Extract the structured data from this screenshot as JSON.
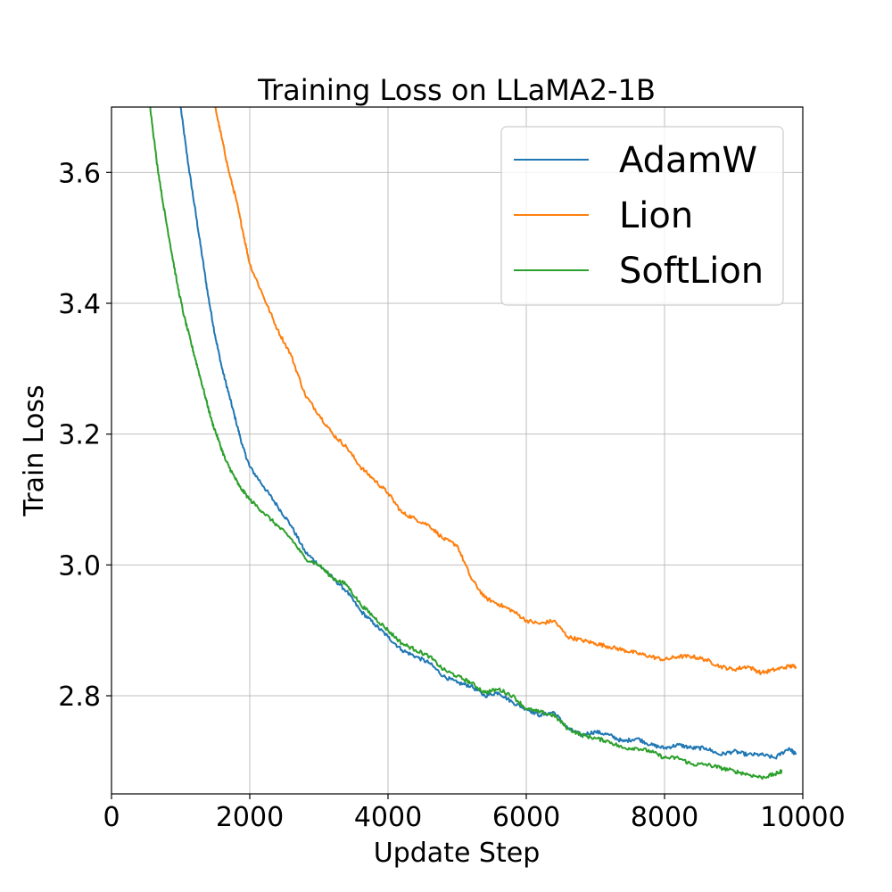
{
  "chart_data": {
    "type": "line",
    "title": "Training Loss on LLaMA2-1B",
    "xlabel": "Update Step",
    "ylabel": "Train Loss",
    "xlim": [
      0,
      10000
    ],
    "ylim": [
      2.65,
      3.7
    ],
    "xticks": [
      0,
      2000,
      4000,
      6000,
      8000,
      10000
    ],
    "xtick_labels": [
      "0",
      "2000",
      "4000",
      "6000",
      "8000",
      "10000"
    ],
    "yticks": [
      2.8,
      3.0,
      3.2,
      3.4,
      3.6
    ],
    "ytick_labels": [
      "2.8",
      "3.0",
      "3.2",
      "3.4",
      "3.6"
    ],
    "grid": true,
    "legend_position": "top-right",
    "series": [
      {
        "name": "AdamW",
        "color": "#1f77b4",
        "x": [
          1000,
          1100,
          1200,
          1300,
          1400,
          1500,
          1600,
          1700,
          1800,
          1900,
          2000,
          2200,
          2400,
          2600,
          2800,
          3000,
          3200,
          3400,
          3600,
          3800,
          4000,
          4200,
          4400,
          4600,
          4800,
          5000,
          5200,
          5400,
          5600,
          5800,
          6000,
          6200,
          6400,
          6600,
          6800,
          7000,
          7200,
          7400,
          7600,
          7800,
          8000,
          8200,
          8400,
          8600,
          8800,
          9000,
          9200,
          9400,
          9600,
          9800,
          9900
        ],
        "y": [
          3.7,
          3.62,
          3.55,
          3.48,
          3.41,
          3.35,
          3.3,
          3.26,
          3.22,
          3.18,
          3.15,
          3.12,
          3.09,
          3.06,
          3.02,
          3.0,
          2.98,
          2.96,
          2.93,
          2.91,
          2.89,
          2.87,
          2.86,
          2.85,
          2.83,
          2.82,
          2.815,
          2.8,
          2.805,
          2.79,
          2.78,
          2.77,
          2.775,
          2.75,
          2.74,
          2.745,
          2.74,
          2.73,
          2.735,
          2.725,
          2.72,
          2.725,
          2.72,
          2.72,
          2.71,
          2.715,
          2.71,
          2.71,
          2.705,
          2.72,
          2.71
        ]
      },
      {
        "name": "Lion",
        "color": "#ff7f0e",
        "x": [
          1500,
          1600,
          1700,
          1800,
          1900,
          2000,
          2200,
          2400,
          2600,
          2800,
          3000,
          3200,
          3400,
          3600,
          3800,
          4000,
          4200,
          4400,
          4600,
          4800,
          5000,
          5200,
          5400,
          5600,
          5800,
          6000,
          6200,
          6400,
          6600,
          6800,
          7000,
          7200,
          7400,
          7600,
          7800,
          8000,
          8200,
          8400,
          8600,
          8800,
          9000,
          9200,
          9400,
          9600,
          9800,
          9900
        ],
        "y": [
          3.7,
          3.65,
          3.6,
          3.56,
          3.51,
          3.46,
          3.41,
          3.36,
          3.32,
          3.26,
          3.23,
          3.2,
          3.18,
          3.15,
          3.13,
          3.11,
          3.08,
          3.07,
          3.06,
          3.04,
          3.03,
          2.98,
          2.95,
          2.94,
          2.93,
          2.915,
          2.91,
          2.915,
          2.89,
          2.885,
          2.88,
          2.875,
          2.87,
          2.865,
          2.86,
          2.855,
          2.86,
          2.86,
          2.855,
          2.845,
          2.84,
          2.845,
          2.835,
          2.84,
          2.845,
          2.845
        ]
      },
      {
        "name": "SoftLion",
        "color": "#2ca02c",
        "x": [
          560,
          650,
          750,
          850,
          950,
          1050,
          1150,
          1250,
          1350,
          1450,
          1550,
          1650,
          1750,
          1850,
          2000,
          2200,
          2400,
          2600,
          2800,
          3000,
          3200,
          3400,
          3600,
          3800,
          4000,
          4200,
          4400,
          4600,
          4800,
          5000,
          5200,
          5400,
          5600,
          5800,
          6000,
          6200,
          6400,
          6600,
          6800,
          7000,
          7200,
          7400,
          7600,
          7800,
          8000,
          8200,
          8400,
          8600,
          8800,
          9000,
          9200,
          9400,
          9600,
          9700
        ],
        "y": [
          3.7,
          3.62,
          3.55,
          3.49,
          3.43,
          3.38,
          3.34,
          3.3,
          3.26,
          3.22,
          3.19,
          3.16,
          3.14,
          3.12,
          3.1,
          3.08,
          3.06,
          3.04,
          3.01,
          3.0,
          2.98,
          2.97,
          2.94,
          2.92,
          2.9,
          2.88,
          2.87,
          2.86,
          2.84,
          2.83,
          2.82,
          2.805,
          2.81,
          2.8,
          2.78,
          2.775,
          2.77,
          2.75,
          2.74,
          2.735,
          2.73,
          2.72,
          2.72,
          2.715,
          2.705,
          2.705,
          2.695,
          2.695,
          2.69,
          2.685,
          2.68,
          2.675,
          2.68,
          2.685
        ]
      }
    ]
  }
}
